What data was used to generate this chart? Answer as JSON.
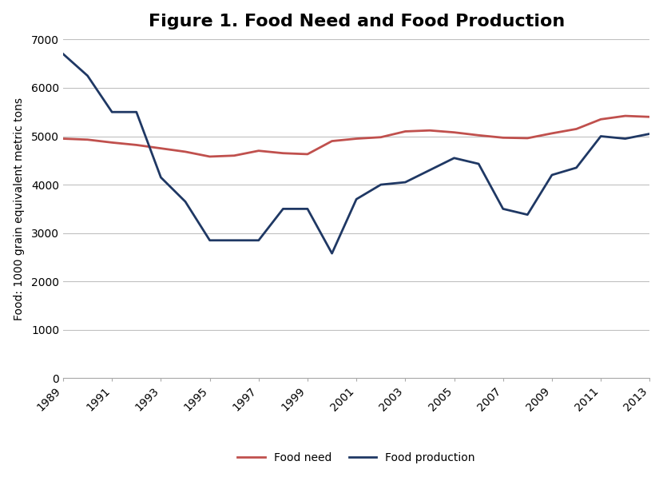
{
  "title": "Figure 1. Food Need and Food Production",
  "ylabel": "Food: 1000 grain equivalent metric tons",
  "xlabel": "",
  "years": [
    1989,
    1990,
    1991,
    1992,
    1993,
    1994,
    1995,
    1996,
    1997,
    1998,
    1999,
    2000,
    2001,
    2002,
    2003,
    2004,
    2005,
    2006,
    2007,
    2008,
    2009,
    2010,
    2011,
    2012,
    2013
  ],
  "food_need": [
    4950,
    4930,
    4870,
    4820,
    4750,
    4680,
    4580,
    4600,
    4700,
    4650,
    4630,
    4900,
    4950,
    4980,
    5100,
    5120,
    5080,
    5020,
    4970,
    4960,
    5060,
    5150,
    5350,
    5420,
    5400
  ],
  "food_production": [
    6700,
    6250,
    5500,
    5500,
    4150,
    3650,
    2850,
    2850,
    2850,
    3500,
    3500,
    2580,
    3700,
    4000,
    4050,
    4300,
    4550,
    4430,
    3500,
    3380,
    4200,
    4350,
    5000,
    4950,
    5050
  ],
  "food_need_color": "#C0504D",
  "food_production_color": "#1F3864",
  "ylim": [
    0,
    7000
  ],
  "yticks": [
    0,
    1000,
    2000,
    3000,
    4000,
    5000,
    6000,
    7000
  ],
  "xtick_labels": [
    "1989",
    "1991",
    "1993",
    "1995",
    "1997",
    "1999",
    "2001",
    "2003",
    "2005",
    "2007",
    "2009",
    "2011",
    "2013"
  ],
  "xtick_positions": [
    1989,
    1991,
    1993,
    1995,
    1997,
    1999,
    2001,
    2003,
    2005,
    2007,
    2009,
    2011,
    2013
  ],
  "legend_labels": [
    "Food need",
    "Food production"
  ],
  "background_color": "#FFFFFF",
  "plot_bg_color": "#FFFFFF",
  "grid_color": "#C0C0C0",
  "title_fontsize": 16,
  "axis_label_fontsize": 10,
  "tick_fontsize": 10,
  "legend_fontsize": 10,
  "line_width": 2.0
}
